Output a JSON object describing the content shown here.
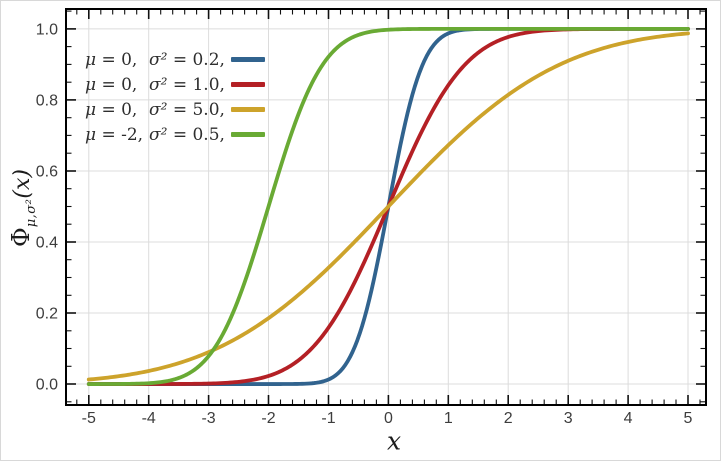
{
  "axis": {
    "x_label": "x",
    "y_label_phi": "Φ",
    "y_label_sub": "μ,σ²",
    "y_label_rest": "(x)"
  },
  "legend": {
    "rows": [
      {
        "mu_sym": "μ",
        "mu_val": "= 0,",
        "sig_sym": "σ²",
        "sig_val": "= 0.2,"
      },
      {
        "mu_sym": "μ",
        "mu_val": "= 0,",
        "sig_sym": "σ²",
        "sig_val": "= 1.0,"
      },
      {
        "mu_sym": "μ",
        "mu_val": "= 0,",
        "sig_sym": "σ²",
        "sig_val": "= 5.0,"
      },
      {
        "mu_sym": "μ",
        "mu_val": "= -2,",
        "sig_sym": "σ²",
        "sig_val": "= 0.5,"
      }
    ]
  },
  "chart_data": {
    "type": "line",
    "title": "",
    "xlabel": "x",
    "ylabel": "Φ_{μ,σ²}(x)",
    "xlim": [
      -5,
      5
    ],
    "ylim": [
      0,
      1
    ],
    "grid": true,
    "legend_position": "top-left",
    "frame_ticks": "all-sides-inward",
    "x_major_ticks": [
      -5,
      -4,
      -3,
      -2,
      -1,
      0,
      1,
      2,
      3,
      4,
      5
    ],
    "x_tick_labels": [
      "-5",
      "-4",
      "-3",
      "-2",
      "-1",
      "0",
      "1",
      "2",
      "3",
      "4",
      "5"
    ],
    "x_minor_step": 0.2,
    "y_major_ticks": [
      0,
      0.2,
      0.4,
      0.6,
      0.8,
      1.0
    ],
    "y_tick_labels": [
      "0.0",
      "0.2",
      "0.4",
      "0.6",
      "0.8",
      "1.0"
    ],
    "y_minor_step": 0.05,
    "grid_color": "#dcdcdc",
    "frame_color": "#000000",
    "tick_label_color": "#3d3d3d",
    "x_sample": [
      -5,
      -4.5,
      -4,
      -3.5,
      -3,
      -2.5,
      -2,
      -1.5,
      -1,
      -0.5,
      0,
      0.5,
      1,
      1.5,
      2,
      2.5,
      3,
      3.5,
      4,
      4.5,
      5
    ],
    "series": [
      {
        "name": "μ = 0, σ² = 0.2",
        "mu": 0,
        "sigma2": 0.2,
        "color": "#31638e",
        "y": [
          0,
          0,
          0,
          0,
          0,
          0,
          0,
          0.0004,
          0.0127,
          0.1318,
          0.5,
          0.8682,
          0.9873,
          0.9996,
          1,
          1,
          1,
          1,
          1,
          1,
          1
        ]
      },
      {
        "name": "μ = 0, σ² = 1.0",
        "mu": 0,
        "sigma2": 1.0,
        "color": "#b42025",
        "y": [
          0,
          0,
          0,
          0.0002,
          0.0013,
          0.0062,
          0.0228,
          0.0668,
          0.1587,
          0.3085,
          0.5,
          0.6915,
          0.8413,
          0.9332,
          0.9772,
          0.9938,
          0.9987,
          0.9998,
          1,
          1,
          1
        ]
      },
      {
        "name": "μ = 0, σ² = 5.0",
        "mu": 0,
        "sigma2": 5.0,
        "color": "#cda32b",
        "y": [
          0.0127,
          0.0221,
          0.0368,
          0.0588,
          0.0899,
          0.1318,
          0.1855,
          0.2512,
          0.3274,
          0.4115,
          0.5,
          0.5885,
          0.6726,
          0.7488,
          0.8145,
          0.8682,
          0.9101,
          0.9412,
          0.9632,
          0.9779,
          0.9873
        ]
      },
      {
        "name": "μ = -2, σ² = 0.5",
        "mu": -2,
        "sigma2": 0.5,
        "color": "#69aa34",
        "y": [
          0,
          0.0002,
          0.0023,
          0.0169,
          0.0786,
          0.2398,
          0.5,
          0.7602,
          0.9214,
          0.9831,
          0.9977,
          0.9998,
          1,
          1,
          1,
          1,
          1,
          1,
          1,
          1,
          1
        ]
      }
    ]
  }
}
